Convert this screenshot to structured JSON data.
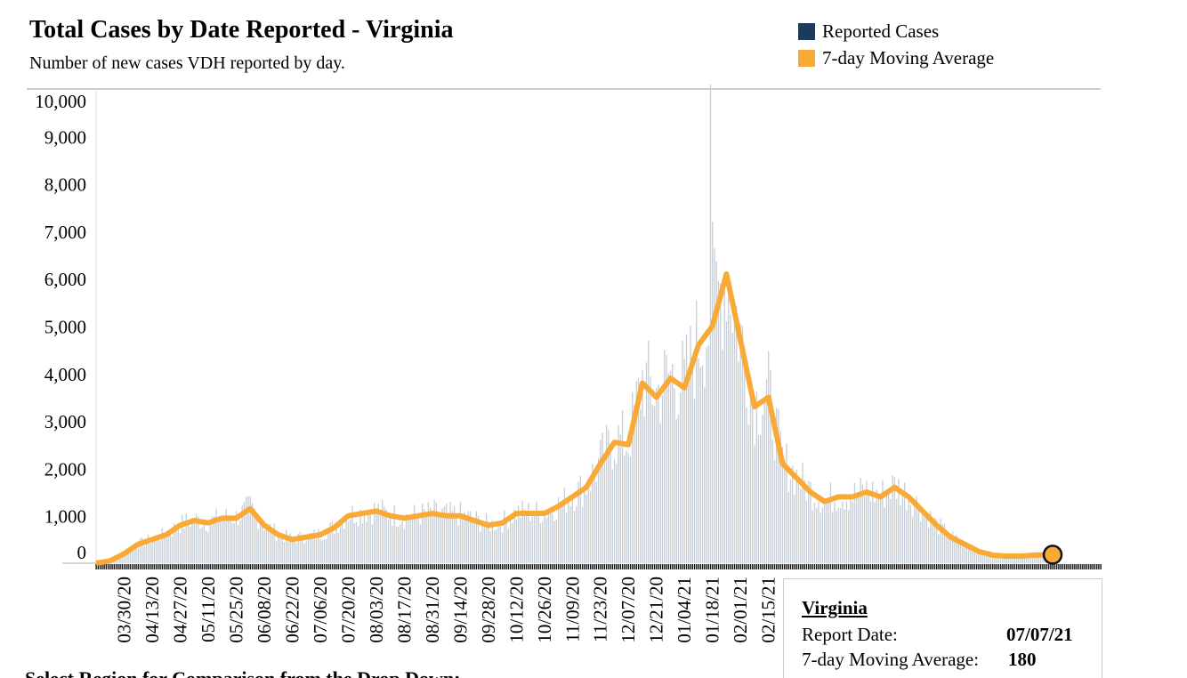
{
  "header": {
    "title": "Total Cases by Date Reported - Virginia",
    "subtitle": "Number of new cases VDH reported by day."
  },
  "legend": [
    {
      "label": "Reported Cases",
      "color": "#1b3a5f"
    },
    {
      "label": "7-day Moving Average",
      "color": "#f9a935"
    }
  ],
  "tooltip": {
    "region": "Virginia",
    "date_label": "Report Date:",
    "date": "07/07/21",
    "avg_label": "7-day Moving Average:",
    "avg": "180"
  },
  "footer": "Select Region for Comparison from the Drop Down:",
  "chart_data": {
    "type": "bar",
    "title": "Total Cases by Date Reported - Virginia",
    "ylim": [
      0,
      10000
    ],
    "yticks": [
      0,
      1000,
      2000,
      3000,
      4000,
      5000,
      6000,
      7000,
      8000,
      9000,
      10000
    ],
    "ytick_labels": [
      "0",
      "1,000",
      "2,000",
      "3,000",
      "4,000",
      "5,000",
      "6,000",
      "7,000",
      "8,000",
      "9,000",
      "10,000"
    ],
    "x_start": "2020-03-16",
    "x_end": "2021-07-31",
    "xtick_labels": [
      "03/30/20",
      "04/13/20",
      "04/27/20",
      "05/11/20",
      "05/25/20",
      "06/08/20",
      "06/22/20",
      "07/06/20",
      "07/20/20",
      "08/03/20",
      "08/17/20",
      "08/31/20",
      "09/14/20",
      "09/28/20",
      "10/12/20",
      "10/26/20",
      "11/09/20",
      "11/23/20",
      "12/07/20",
      "12/21/20",
      "01/04/21",
      "01/18/21",
      "02/01/21",
      "02/15/21"
    ],
    "moving_average_weekly": {
      "start": "2020-03-16",
      "step_days": 7,
      "values": [
        0,
        50,
        200,
        400,
        500,
        600,
        800,
        900,
        850,
        950,
        950,
        1150,
        800,
        600,
        500,
        550,
        600,
        750,
        1000,
        1050,
        1100,
        1000,
        950,
        1000,
        1050,
        1000,
        1000,
        900,
        800,
        850,
        1050,
        1050,
        1050,
        1200,
        1400,
        1600,
        2100,
        2550,
        2500,
        3800,
        3500,
        3900,
        3700,
        4600,
        5000,
        6100,
        4700,
        3300,
        3500,
        2100,
        1800,
        1500,
        1300,
        1400,
        1400,
        1500,
        1400,
        1600,
        1400,
        1100,
        800,
        550,
        400,
        250,
        170,
        150,
        150,
        170,
        180,
        180
      ]
    },
    "reported_spikes": [
      {
        "date": "2021-01-17",
        "value": 10100
      },
      {
        "date": "2021-01-18",
        "value": 7200
      }
    ],
    "highlight": {
      "date": "2021-07-07",
      "value": 180
    }
  }
}
